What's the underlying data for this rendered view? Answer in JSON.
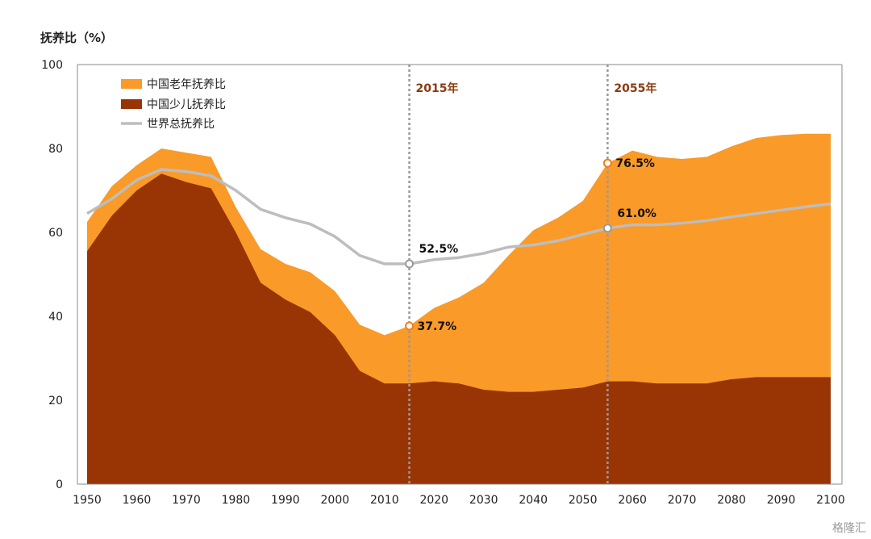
{
  "chart_data": {
    "type": "area",
    "ylabel": "抚养比（%）",
    "ylim": [
      0,
      100
    ],
    "yticks": [
      0,
      20,
      40,
      60,
      80,
      100
    ],
    "xlim": [
      1950,
      2100
    ],
    "xticks": [
      1950,
      1960,
      1970,
      1980,
      1990,
      2000,
      2010,
      2020,
      2030,
      2040,
      2050,
      2060,
      2070,
      2080,
      2090,
      2100
    ],
    "grid": false,
    "legend_position": "top-left",
    "series": [
      {
        "name": "中国老年抚养比",
        "kind": "stacked-area",
        "color": "#FA9A28",
        "x": [
          1950,
          1955,
          1960,
          1965,
          1970,
          1975,
          1980,
          1985,
          1990,
          1995,
          2000,
          2005,
          2010,
          2015,
          2020,
          2025,
          2030,
          2035,
          2040,
          2045,
          2050,
          2055,
          2060,
          2065,
          2070,
          2075,
          2080,
          2085,
          2090,
          2095,
          2100
        ],
        "total": [
          62.5,
          71,
          76,
          80,
          79,
          78,
          66,
          56,
          52.5,
          50.5,
          46,
          38,
          35.5,
          37.7,
          42,
          44.5,
          48,
          54.5,
          60.5,
          63.5,
          67.5,
          76.5,
          79.5,
          78,
          77.5,
          78,
          80.5,
          82.5,
          83.2,
          83.5,
          83.5
        ]
      },
      {
        "name": "中国少儿抚养比",
        "kind": "area",
        "color": "#993404",
        "x": [
          1950,
          1955,
          1960,
          1965,
          1970,
          1975,
          1980,
          1985,
          1990,
          1995,
          2000,
          2005,
          2010,
          2015,
          2020,
          2025,
          2030,
          2035,
          2040,
          2045,
          2050,
          2055,
          2060,
          2065,
          2070,
          2075,
          2080,
          2085,
          2090,
          2095,
          2100
        ],
        "values": [
          55.5,
          64,
          70,
          74,
          72,
          70.5,
          60,
          48,
          44,
          41,
          35.5,
          27,
          24,
          24,
          24.5,
          24,
          22.5,
          22,
          22,
          22.5,
          23,
          24.5,
          24.5,
          24,
          24,
          24,
          25,
          25.5,
          25.5,
          25.5,
          25.5
        ]
      },
      {
        "name": "世界总抚养比",
        "kind": "line",
        "color": "#BDBDBD",
        "x": [
          1950,
          1955,
          1960,
          1965,
          1970,
          1975,
          1980,
          1985,
          1990,
          1995,
          2000,
          2005,
          2010,
          2015,
          2020,
          2025,
          2030,
          2035,
          2040,
          2045,
          2050,
          2055,
          2060,
          2065,
          2070,
          2075,
          2080,
          2085,
          2090,
          2095,
          2100
        ],
        "values": [
          64.5,
          68,
          72.5,
          75,
          74.5,
          73.5,
          70,
          65.5,
          63.5,
          62,
          59,
          54.5,
          52.5,
          52.5,
          53.5,
          54,
          55,
          56.5,
          57,
          58,
          59.5,
          61,
          61.8,
          61.8,
          62.2,
          62.8,
          63.7,
          64.5,
          65.3,
          66.1,
          66.8
        ]
      }
    ],
    "markers": [
      {
        "label": "2015年",
        "x": 2015
      },
      {
        "label": "2055年",
        "x": 2055
      }
    ],
    "annotations": [
      {
        "label": "52.5%",
        "x": 2015,
        "y": 52.5,
        "series": "世界总抚养比"
      },
      {
        "label": "37.7%",
        "x": 2015,
        "y": 37.7,
        "series": "中国老年抚养比"
      },
      {
        "label": "76.5%",
        "x": 2055,
        "y": 76.5,
        "series": "中国老年抚养比"
      },
      {
        "label": "61.0%",
        "x": 2055,
        "y": 61.0,
        "series": "世界总抚养比"
      }
    ]
  },
  "watermark": "格隆汇"
}
